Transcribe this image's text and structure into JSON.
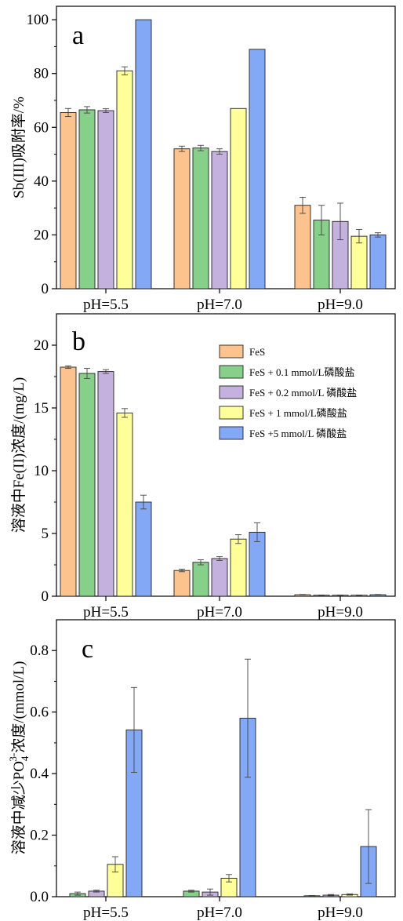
{
  "colors": {
    "FeS": "#FDC38E",
    "FeS_0.1": "#86D08A",
    "FeS_0.2": "#C5B1DE",
    "FeS_1": "#FFFF99",
    "FeS_5": "#83A8F6"
  },
  "legend": {
    "items": [
      {
        "key": "FeS",
        "label": "FeS"
      },
      {
        "key": "FeS_0.1",
        "label": "FeS + 0.1 mmol/L磷酸盐"
      },
      {
        "key": "FeS_0.2",
        "label": "FeS + 0.2 mmol/L 磷酸盐"
      },
      {
        "key": "FeS_1",
        "label": "FeS + 1 mmol/L磷酸盐"
      },
      {
        "key": "FeS_5",
        "label": "FeS +5 mmol/L 磷酸盐"
      }
    ]
  },
  "chart_data": [
    {
      "type": "bar",
      "panel_label": "a",
      "ylabel": "Sb(III)吸附率/%",
      "ylim": [
        0,
        105
      ],
      "yticks": [
        0,
        20,
        40,
        60,
        80,
        100
      ],
      "categories": [
        "pH=5.5",
        "pH=7.0",
        "pH=9.0"
      ],
      "series": [
        {
          "key": "FeS",
          "values": [
            65.5,
            52.0,
            31.0
          ],
          "errors": [
            1.5,
            1.0,
            3.0
          ]
        },
        {
          "key": "FeS_0.1",
          "values": [
            66.5,
            52.3,
            25.5
          ],
          "errors": [
            1.2,
            1.0,
            5.5
          ]
        },
        {
          "key": "FeS_0.2",
          "values": [
            66.2,
            51.0,
            25.0
          ],
          "errors": [
            0.7,
            1.0,
            6.8
          ]
        },
        {
          "key": "FeS_1",
          "values": [
            81.0,
            67.0,
            19.5
          ],
          "errors": [
            1.5,
            0,
            2.5
          ]
        },
        {
          "key": "FeS_5",
          "values": [
            100.0,
            89.0,
            20.0
          ],
          "errors": [
            0,
            0,
            0.8
          ]
        }
      ]
    },
    {
      "type": "bar",
      "panel_label": "b",
      "ylabel": "溶液中Fe(II)浓度/(mg/L)",
      "ylim": [
        0,
        22.5
      ],
      "yticks": [
        0,
        5,
        10,
        15,
        20
      ],
      "categories": [
        "pH=5.5",
        "pH=7.0",
        "pH=9.0"
      ],
      "series": [
        {
          "key": "FeS",
          "values": [
            18.25,
            2.05,
            0.12
          ],
          "errors": [
            0.1,
            0.1,
            0.02
          ]
        },
        {
          "key": "FeS_0.1",
          "values": [
            17.75,
            2.7,
            0.08
          ],
          "errors": [
            0.4,
            0.2,
            0.02
          ]
        },
        {
          "key": "FeS_0.2",
          "values": [
            17.9,
            3.0,
            0.08
          ],
          "errors": [
            0.15,
            0.15,
            0.02
          ]
        },
        {
          "key": "FeS_1",
          "values": [
            14.6,
            4.55,
            0.08
          ],
          "errors": [
            0.35,
            0.35,
            0.02
          ]
        },
        {
          "key": "FeS_5",
          "values": [
            7.5,
            5.1,
            0.12
          ],
          "errors": [
            0.55,
            0.75,
            0.02
          ]
        }
      ]
    },
    {
      "type": "bar",
      "panel_label": "c",
      "ylabel": "溶液中减少PO43-浓度/(mmol/L)",
      "ylim": [
        0,
        0.9
      ],
      "yticks": [
        "0.0",
        "0.2",
        "0.4",
        "0.6",
        "0.8"
      ],
      "categories": [
        "pH=5.5",
        "pH=7.0",
        "pH=9.0"
      ],
      "series": [
        {
          "key": "FeS_0.1",
          "values": [
            0.01,
            0.018,
            0.003
          ],
          "errors": [
            0.005,
            0.003,
            0.001
          ]
        },
        {
          "key": "FeS_0.2",
          "values": [
            0.018,
            0.015,
            0.005
          ],
          "errors": [
            0.003,
            0.01,
            0.002
          ]
        },
        {
          "key": "FeS_1",
          "values": [
            0.105,
            0.06,
            0.007
          ],
          "errors": [
            0.025,
            0.012,
            0.002
          ]
        },
        {
          "key": "FeS_5",
          "values": [
            0.542,
            0.58,
            0.163
          ],
          "errors": [
            0.138,
            0.192,
            0.12
          ]
        }
      ]
    }
  ]
}
